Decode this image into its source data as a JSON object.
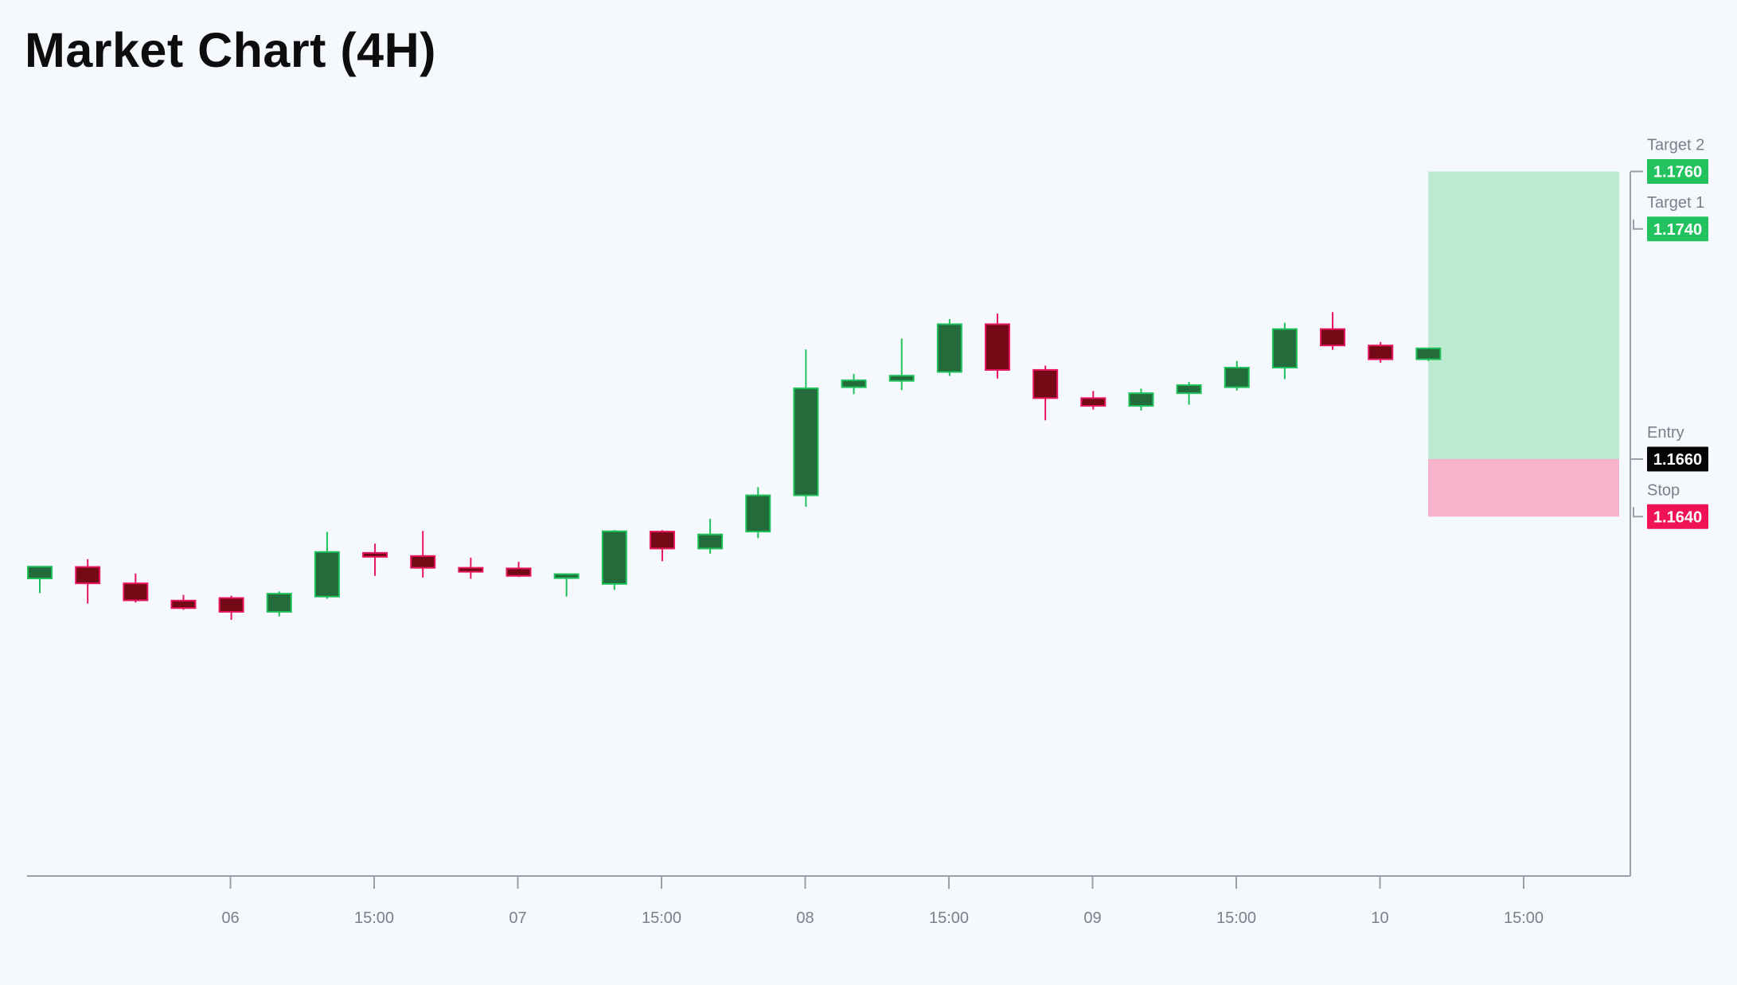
{
  "chart_data": {
    "type": "candlestick",
    "title": "Market Chart (4H)",
    "timeframe": "4H",
    "x_ticks": [
      "06",
      "15:00",
      "07",
      "15:00",
      "08",
      "15:00",
      "09",
      "15:00",
      "10",
      "15:00"
    ],
    "candles": [
      {
        "o": 1.16185,
        "h": 1.16226,
        "l": 1.16134,
        "c": 1.16226
      },
      {
        "o": 1.16225,
        "h": 1.16252,
        "l": 1.16098,
        "c": 1.16168
      },
      {
        "o": 1.16168,
        "h": 1.16202,
        "l": 1.16101,
        "c": 1.16109
      },
      {
        "o": 1.16108,
        "h": 1.16128,
        "l": 1.16076,
        "c": 1.16082
      },
      {
        "o": 1.16117,
        "h": 1.16125,
        "l": 1.16041,
        "c": 1.16069
      },
      {
        "o": 1.16069,
        "h": 1.1614,
        "l": 1.16053,
        "c": 1.16132
      },
      {
        "o": 1.16122,
        "h": 1.16347,
        "l": 1.16114,
        "c": 1.16277
      },
      {
        "o": 1.16274,
        "h": 1.16306,
        "l": 1.16194,
        "c": 1.16268
      },
      {
        "o": 1.16263,
        "h": 1.1635,
        "l": 1.16188,
        "c": 1.16222
      },
      {
        "o": 1.16222,
        "h": 1.16257,
        "l": 1.16184,
        "c": 1.16212
      },
      {
        "o": 1.1622,
        "h": 1.16243,
        "l": 1.1619,
        "c": 1.16194
      },
      {
        "o": 1.16198,
        "h": 1.162,
        "l": 1.16122,
        "c": 1.162
      },
      {
        "o": 1.16166,
        "h": 1.16353,
        "l": 1.16145,
        "c": 1.16349
      },
      {
        "o": 1.16348,
        "h": 1.16353,
        "l": 1.16245,
        "c": 1.16289
      },
      {
        "o": 1.16289,
        "h": 1.16392,
        "l": 1.16271,
        "c": 1.16338
      },
      {
        "o": 1.16348,
        "h": 1.16502,
        "l": 1.16325,
        "c": 1.16474
      },
      {
        "o": 1.16474,
        "h": 1.16981,
        "l": 1.16434,
        "c": 1.16846
      },
      {
        "o": 1.1685,
        "h": 1.16896,
        "l": 1.16826,
        "c": 1.16874
      },
      {
        "o": 1.16872,
        "h": 1.17019,
        "l": 1.1684,
        "c": 1.1689
      },
      {
        "o": 1.16903,
        "h": 1.17087,
        "l": 1.16889,
        "c": 1.17069
      },
      {
        "o": 1.17069,
        "h": 1.17106,
        "l": 1.1688,
        "c": 1.1691
      },
      {
        "o": 1.1691,
        "h": 1.16925,
        "l": 1.16735,
        "c": 1.16812
      },
      {
        "o": 1.16812,
        "h": 1.16837,
        "l": 1.16772,
        "c": 1.16785
      },
      {
        "o": 1.16785,
        "h": 1.16845,
        "l": 1.16769,
        "c": 1.16829
      },
      {
        "o": 1.16829,
        "h": 1.16868,
        "l": 1.16789,
        "c": 1.16857
      },
      {
        "o": 1.1685,
        "h": 1.16941,
        "l": 1.16838,
        "c": 1.16918
      },
      {
        "o": 1.16918,
        "h": 1.17074,
        "l": 1.16878,
        "c": 1.17052
      },
      {
        "o": 1.17052,
        "h": 1.17111,
        "l": 1.1698,
        "c": 1.16995
      },
      {
        "o": 1.16995,
        "h": 1.17007,
        "l": 1.16935,
        "c": 1.16947
      },
      {
        "o": 1.16947,
        "h": 1.16987,
        "l": 1.16941,
        "c": 1.16985
      }
    ],
    "levels": [
      {
        "key": "target2",
        "name": "Target 2",
        "value": "1.1760",
        "price": 1.176
      },
      {
        "key": "target1",
        "name": "Target 1",
        "value": "1.1740",
        "price": 1.174
      },
      {
        "key": "entry",
        "name": "Entry",
        "value": "1.1660",
        "price": 1.166
      },
      {
        "key": "stop",
        "name": "Stop",
        "value": "1.1640",
        "price": 1.164
      }
    ],
    "colors": {
      "up_fill": "#236b3a",
      "up_wick": "#1fc25a",
      "down_fill": "#720914",
      "down_wick": "#e8175d",
      "profit_zone": "#bcebd1",
      "loss_zone": "#f7b3cb",
      "target_badge": "#22c35e",
      "entry_badge": "#050505",
      "stop_badge": "#ef1355",
      "axis": "#9aa0aa"
    }
  }
}
